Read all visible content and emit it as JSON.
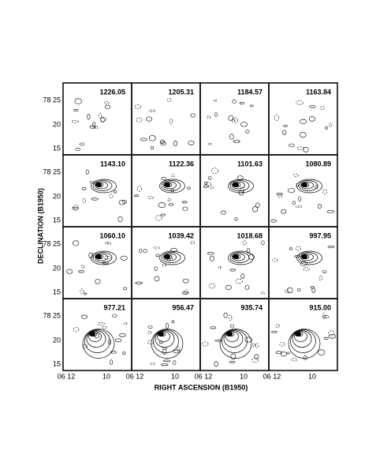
{
  "panels": [
    {
      "label": "1226.05"
    },
    {
      "label": "1205.31"
    },
    {
      "label": "1184.57"
    },
    {
      "label": "1163.84"
    },
    {
      "label": "1143.10"
    },
    {
      "label": "1122.36"
    },
    {
      "label": "1101.63"
    },
    {
      "label": "1080.89"
    },
    {
      "label": "1060.10"
    },
    {
      "label": "1039.42"
    },
    {
      "label": "1018.68"
    },
    {
      "label": "997.95"
    },
    {
      "label": "977.21"
    },
    {
      "label": "956.47"
    },
    {
      "label": "935.74"
    },
    {
      "label": "915.00"
    }
  ],
  "y_ticks": [
    "78 25",
    "20",
    "15"
  ],
  "x_ticks": [
    "06 12",
    "10"
  ],
  "y_axis_title": "DECLINATION (B1950)",
  "x_axis_title": "RIGHT ASCENSION (B1950)"
}
